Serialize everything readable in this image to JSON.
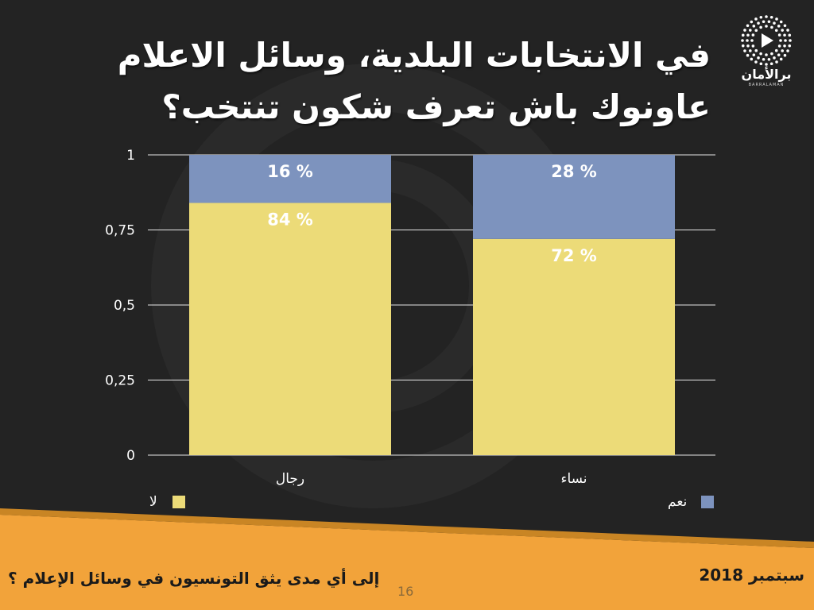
{
  "slide": {
    "title_line1": "في الانتخابات البلدية، وسائل الاعلام",
    "title_line2": "عاونوك باش تعرف شكون تنتخب؟",
    "logo_name": "برالأمان",
    "logo_sub": "BARRALAMAN",
    "footer_question": "إلى أي مدى يثق التونسيون في وسائل الإعلام ؟",
    "footer_date": "سبتمبر 2018",
    "page_number": "16",
    "colors": {
      "background": "#232323",
      "no": "#ecdb78",
      "yes": "#7d93be",
      "band": "#f2a33a"
    }
  },
  "chart_data": {
    "type": "bar",
    "stacked": true,
    "categories": [
      "رجال",
      "نساء"
    ],
    "series": [
      {
        "name": "لا",
        "values": [
          0.84,
          0.72
        ],
        "labels": [
          "84 %",
          "72 %"
        ],
        "color": "#ecdb78"
      },
      {
        "name": "نعم",
        "values": [
          0.16,
          0.28
        ],
        "labels": [
          "16 %",
          "28 %"
        ],
        "color": "#7d93be"
      }
    ],
    "yticks": [
      "0",
      "0,25",
      "0,5",
      "0,75",
      "1"
    ],
    "ytick_values": [
      0,
      0.25,
      0.5,
      0.75,
      1
    ],
    "ylim": [
      0,
      1
    ],
    "grid": true,
    "legend": "bottom"
  }
}
